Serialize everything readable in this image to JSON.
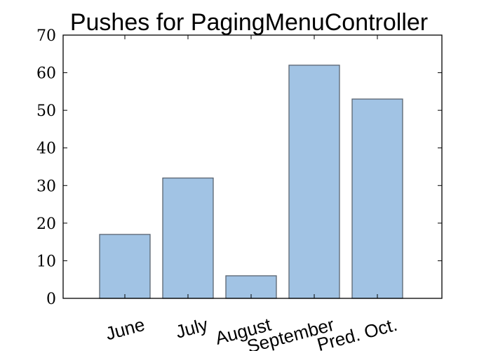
{
  "chart_data": {
    "type": "bar",
    "title": "Pushes for PagingMenuController",
    "categories": [
      "June",
      "July",
      "August",
      "September",
      "Pred. Oct."
    ],
    "values": [
      17,
      32,
      6,
      62,
      53
    ],
    "ylim": [
      0,
      70
    ],
    "yticks": [
      0,
      10,
      20,
      30,
      40,
      50,
      60,
      70
    ],
    "xlabel": "",
    "ylabel": "",
    "grid": false,
    "colors": {
      "bar_fill": "#a1c3e4",
      "bar_edge": "#5a6470"
    }
  }
}
